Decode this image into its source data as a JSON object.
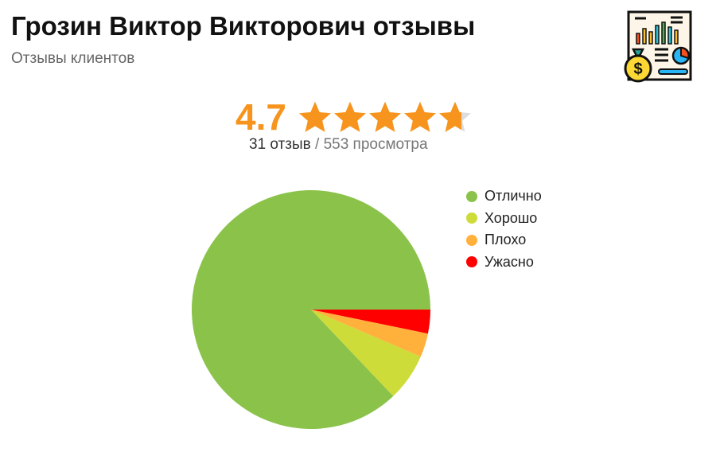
{
  "header": {
    "title": "Грозин Виктор Викторович отзывы",
    "subtitle": "Отзывы клиентов",
    "logo_icon": "financial-report-icon"
  },
  "rating": {
    "score": "4.7",
    "stars_filled": 4.7,
    "stars_total": 5,
    "star_color": "#f7941d",
    "reviews": "31 отзыв",
    "separator": " / ",
    "views": "553 просмотра"
  },
  "chart_data": {
    "type": "pie",
    "categories": [
      "Отлично",
      "Хорошо",
      "Плохо",
      "Ужасно"
    ],
    "values": [
      27,
      2,
      1,
      1
    ],
    "colors": [
      "#8bc34a",
      "#cddc39",
      "#ffb13b",
      "#ff0000"
    ],
    "legend_position": "right"
  }
}
